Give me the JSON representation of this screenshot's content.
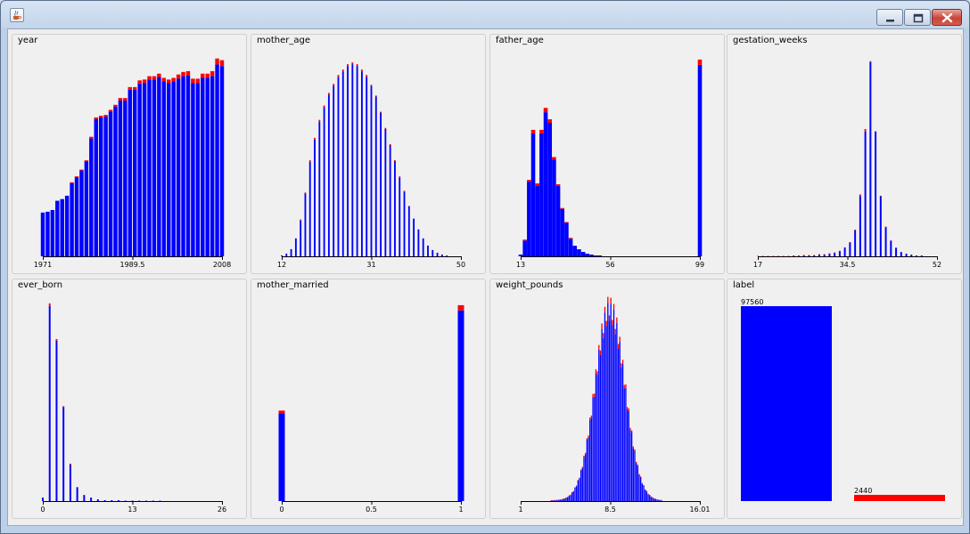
{
  "window": {
    "icon": "java-cup-icon",
    "controls": [
      "minimize-icon",
      "maximize-icon",
      "close-icon"
    ]
  },
  "colors": {
    "main": "#0000ff",
    "accent": "#ff0000",
    "panel_bg": "#f0f0f0",
    "axis": "#000000"
  },
  "panels": [
    {
      "title": "year",
      "chart_data": {
        "type": "bar",
        "stacked": true,
        "x": [
          1971,
          1972,
          1973,
          1974,
          1975,
          1976,
          1977,
          1978,
          1979,
          1980,
          1981,
          1982,
          1983,
          1984,
          1985,
          1986,
          1987,
          1988,
          1989,
          1990,
          1991,
          1992,
          1993,
          1994,
          1995,
          1996,
          1997,
          1998,
          1999,
          2000,
          2001,
          2002,
          2003,
          2004,
          2005,
          2006,
          2007,
          2008
        ],
        "series": [
          {
            "color": "#0000ff",
            "values": [
              52,
              53,
              55,
              66,
              68,
              72,
              87,
              94,
              102,
              113,
              140,
              163,
              165,
              166,
              172,
              178,
              185,
              185,
              198,
              198,
              205,
              206,
              210,
              210,
              213,
              208,
              206,
              208,
              211,
              214,
              215,
              206,
              206,
              212,
              212,
              214,
              228,
              226
            ]
          },
          {
            "color": "#ff0000",
            "values": [
              0,
              0,
              0,
              0,
              0,
              0,
              1,
              1,
              1,
              1,
              2,
              2,
              2,
              2,
              2,
              2,
              3,
              3,
              3,
              3,
              4,
              4,
              4,
              4,
              4,
              4,
              4,
              4,
              5,
              5,
              5,
              5,
              5,
              5,
              5,
              6,
              7,
              7
            ]
          }
        ],
        "xticks": [
          "1971",
          "1989.5",
          "2008"
        ],
        "xlim": [
          1971,
          2008
        ],
        "ylim": [
          0,
          240
        ]
      }
    },
    {
      "title": "mother_age",
      "chart_data": {
        "type": "bar",
        "stacked": true,
        "x": [
          12,
          13,
          14,
          15,
          16,
          17,
          18,
          19,
          20,
          21,
          22,
          23,
          24,
          25,
          26,
          27,
          28,
          29,
          30,
          31,
          32,
          33,
          34,
          35,
          36,
          37,
          38,
          39,
          40,
          41,
          42,
          43,
          44,
          45,
          46,
          47,
          48,
          49,
          50
        ],
        "series": [
          {
            "color": "#0000ff",
            "values": [
              1,
              3,
              8,
              20,
              40,
              70,
              105,
              130,
              150,
              166,
              180,
              190,
              200,
              206,
              212,
              214,
              212,
              206,
              200,
              190,
              178,
              160,
              142,
              124,
              106,
              88,
              72,
              56,
              42,
              30,
              20,
              12,
              7,
              4,
              2,
              1,
              0,
              0,
              0
            ]
          },
          {
            "color": "#ff0000",
            "values": [
              0,
              0,
              0,
              0,
              1,
              1,
              2,
              2,
              2,
              2,
              2,
              2,
              2,
              2,
              2,
              2,
              2,
              2,
              2,
              1,
              1,
              1,
              1,
              1,
              1,
              1,
              1,
              0,
              0,
              0,
              0,
              0,
              0,
              0,
              0,
              0,
              0,
              0,
              0
            ]
          }
        ],
        "xticks": [
          "12",
          "31",
          "50"
        ],
        "xlim": [
          12,
          50
        ],
        "ylim": [
          0,
          225
        ]
      }
    },
    {
      "title": "father_age",
      "chart_data": {
        "type": "bar",
        "stacked": true,
        "x": [
          13,
          15,
          17,
          19,
          21,
          23,
          25,
          27,
          29,
          31,
          33,
          35,
          37,
          39,
          41,
          43,
          45,
          47,
          49,
          51,
          53,
          55,
          57,
          59,
          99
        ],
        "series": [
          {
            "color": "#0000ff",
            "values": [
              2,
              18,
              85,
              140,
              80,
              140,
              164,
              152,
              110,
              80,
              54,
              38,
              20,
              12,
              8,
              5,
              3,
              2,
              1,
              1,
              0,
              0,
              0,
              0,
              218
            ]
          },
          {
            "color": "#ff0000",
            "values": [
              0,
              1,
              2,
              4,
              3,
              4,
              5,
              4,
              3,
              2,
              1,
              1,
              1,
              0,
              0,
              0,
              0,
              0,
              0,
              0,
              0,
              0,
              0,
              0,
              6
            ]
          }
        ],
        "xticks": [
          "13",
          "56",
          "99"
        ],
        "xlim": [
          13,
          99
        ],
        "ylim": [
          0,
          230
        ]
      }
    },
    {
      "title": "gestation_weeks",
      "chart_data": {
        "type": "bar",
        "stacked": true,
        "x": [
          17,
          18,
          19,
          20,
          21,
          22,
          23,
          24,
          25,
          26,
          27,
          28,
          29,
          30,
          31,
          32,
          33,
          34,
          35,
          36,
          37,
          38,
          39,
          40,
          41,
          42,
          43,
          44,
          45,
          46,
          47,
          48,
          49,
          50,
          51,
          52
        ],
        "series": [
          {
            "color": "#0000ff",
            "values": [
              0,
              0,
              0,
              0,
              0,
              0,
              0,
              0.5,
              0.5,
              1,
              1,
              1,
              2,
              2,
              3,
              4,
              6,
              10,
              16,
              30,
              70,
              145,
              226,
              145,
              70,
              34,
              18,
              10,
              5,
              3,
              2,
              1,
              1,
              0,
              0,
              0
            ]
          },
          {
            "color": "#ff0000",
            "values": [
              0.5,
              0.5,
              0.5,
              0.5,
              0.5,
              0.5,
              0.5,
              0.5,
              0.5,
              0.5,
              0.5,
              0.5,
              0.5,
              0.5,
              0.5,
              0.5,
              0.5,
              0.5,
              0.5,
              1,
              2,
              3,
              1,
              0.5,
              0.5,
              0.5,
              0.5,
              0,
              0,
              0,
              0,
              0,
              0,
              0,
              0,
              0
            ]
          }
        ],
        "xticks": [
          "17",
          "34.5",
          "52"
        ],
        "xlim": [
          17,
          52
        ],
        "ylim": [
          0,
          235
        ]
      }
    },
    {
      "title": "ever_born",
      "chart_data": {
        "type": "bar",
        "stacked": true,
        "x": [
          0,
          1,
          2,
          3,
          4,
          5,
          6,
          7,
          8,
          9,
          10,
          11,
          12,
          13,
          14,
          15,
          16,
          17,
          18,
          19,
          20,
          21,
          22,
          23,
          24,
          25,
          26
        ],
        "series": [
          {
            "color": "#0000ff",
            "values": [
              4,
              224,
              184,
              108,
              42,
              16,
              7,
              4,
              2,
              1,
              1,
              1,
              0.5,
              0.5,
              0.5,
              0.5,
              0.5,
              0.5,
              0,
              0,
              0,
              0,
              0,
              0,
              0,
              0,
              0
            ]
          },
          {
            "color": "#ff0000",
            "values": [
              0,
              3,
              2,
              1,
              1,
              0,
              0,
              0,
              0,
              0,
              0,
              0,
              0,
              0,
              0,
              0,
              0,
              0,
              0,
              0,
              0,
              0,
              0,
              0,
              0,
              0,
              0
            ]
          }
        ],
        "xticks": [
          "0",
          "13",
          "26"
        ],
        "xlim": [
          0,
          26
        ],
        "ylim": [
          0,
          232
        ]
      }
    },
    {
      "title": "mother_married",
      "chart_data": {
        "type": "bar",
        "stacked": true,
        "x": [
          0,
          1
        ],
        "series": [
          {
            "color": "#0000ff",
            "values": [
              100,
              217
            ]
          },
          {
            "color": "#ff0000",
            "values": [
              3,
              6
            ]
          }
        ],
        "xticks": [
          "0",
          "0.5",
          "1"
        ],
        "xlim": [
          0,
          1
        ],
        "ylim": [
          0,
          230
        ]
      }
    },
    {
      "title": "weight_pounds",
      "chart_data": {
        "type": "histogram",
        "stacked": true,
        "bins": 120,
        "x_min": 1,
        "x_max": 16.01,
        "mode": 8.5,
        "spread": 1.25,
        "peak": 225,
        "red_fraction": 0.03,
        "series": [
          {
            "color": "#0000ff"
          },
          {
            "color": "#ff0000"
          }
        ],
        "xticks": [
          "1",
          "8.5",
          "16.01"
        ],
        "xlim": [
          1,
          16.01
        ],
        "ylim": [
          0,
          230
        ]
      }
    },
    {
      "title": "label",
      "chart_data": {
        "type": "bar",
        "categories": [
          "0",
          "1"
        ],
        "values": [
          97560,
          2440
        ],
        "colors": [
          "#0000ff",
          "#ff0000"
        ],
        "data_labels": [
          "97560",
          "2440"
        ],
        "ylim": [
          0,
          97560
        ]
      }
    }
  ]
}
